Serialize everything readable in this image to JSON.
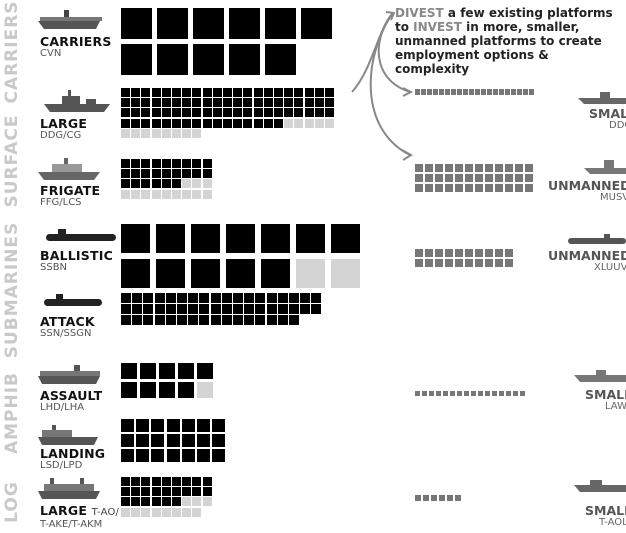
{
  "categories": [
    {
      "key": "carriers",
      "label": "CARRIERS"
    },
    {
      "key": "surface",
      "label": "SURFACE"
    },
    {
      "key": "submarines",
      "label": "SUBMARINES"
    },
    {
      "key": "amphib",
      "label": "AMPHIB"
    },
    {
      "key": "log",
      "label": "LOG"
    }
  ],
  "vessels": [
    {
      "key": "carriers",
      "name": "CARRIERS",
      "sub": "CVN",
      "black": 11,
      "light": 0
    },
    {
      "key": "large",
      "name": "LARGE",
      "sub": "DDG/CG",
      "black": 79,
      "light": 13
    },
    {
      "key": "frigate",
      "name": "FRIGATE",
      "sub": "FFG/LCS",
      "black": 24,
      "light": 12
    },
    {
      "key": "ballistic",
      "name": "BALLISTIC",
      "sub": "SSBN",
      "black": 12,
      "light": 2
    },
    {
      "key": "attack",
      "name": "ATTACK",
      "sub": "SSN/SSGN",
      "black": 52,
      "light": 0
    },
    {
      "key": "assault",
      "name": "ASSAULT",
      "sub": "LHD/LHA",
      "black": 9,
      "light": 1
    },
    {
      "key": "landing",
      "name": "LANDING",
      "sub": "LSD/LPD",
      "black": 21,
      "light": 0
    },
    {
      "key": "log_large",
      "name": "LARGE",
      "inline": "T-AO/",
      "sub": "T-AKE/T-AKM",
      "black": 24,
      "light": 11
    }
  ],
  "callout": {
    "divest_word": "DIVEST",
    "line1_rest": " a few existing platforms",
    "line2_pre": "to ",
    "invest_word": "INVEST",
    "line2_rest": " in more, smaller,",
    "line3": "unmanned platforms to create",
    "line4": "employment options & complexity"
  },
  "future": [
    {
      "key": "small_surface",
      "name": "SMALL",
      "sub": "DDG",
      "count": 20
    },
    {
      "key": "unmanned_surface",
      "name": "UNMANNED",
      "sub": "MUSV",
      "count": 36
    },
    {
      "key": "unmanned_sub",
      "name": "UNMANNED",
      "sub": "XLUUV",
      "count": 20
    },
    {
      "key": "small_amphib",
      "name": "SMALL",
      "sub": "LAW",
      "count": 16
    },
    {
      "key": "small_log",
      "name": "SMALL",
      "sub": "T-AOL",
      "count": 6
    }
  ],
  "colors": {
    "black": "#000000",
    "light": "#d4d4d4",
    "gray": "#777777",
    "category": "#c9c9c9"
  }
}
